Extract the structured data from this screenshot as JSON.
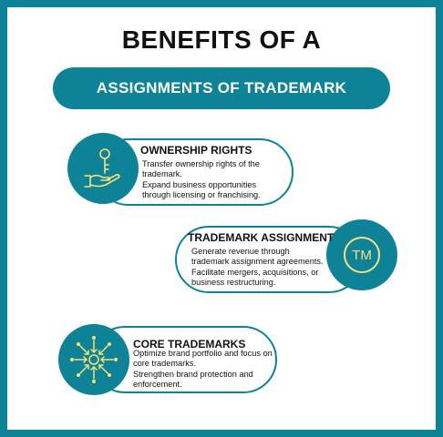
{
  "header": {
    "title": "BENEFITS OF A",
    "banner": "ASSIGNMENTS OF TRADEMARK"
  },
  "cards": [
    {
      "title": "OWNERSHIP RIGHTS",
      "icon": "hand-with-key-icon",
      "lines": [
        "Transfer ownership rights of the",
        "trademark.",
        "Expand business opportunities",
        "through licensing or franchising."
      ]
    },
    {
      "title": "TRADEMARK ASSIGNMENT",
      "icon": "trademark-icon",
      "icon_text": "TM",
      "lines": [
        "Generate revenue through",
        "trademark assignment agreements.",
        "Facilitate mergers, acquisitions, or",
        "business restructuring."
      ]
    },
    {
      "title": "CORE TRADEMARKS",
      "icon": "converging-arrows-icon",
      "lines": [
        "Optimize brand portfolio and focus on",
        "core trademarks.",
        "Strengthen brand protection and",
        "enforcement."
      ]
    }
  ],
  "colors": {
    "accent": "#0e8296",
    "icon": "#f5e27a",
    "text": "#111111"
  }
}
